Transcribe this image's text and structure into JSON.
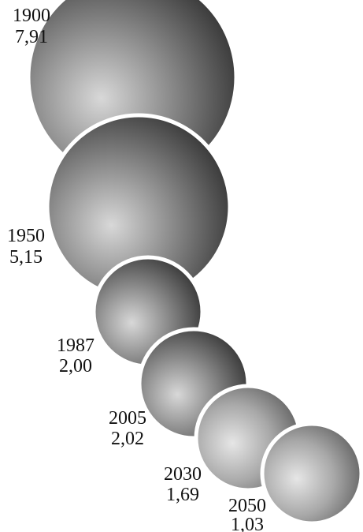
{
  "items": [
    {
      "year": "1900",
      "value": "7,91"
    },
    {
      "year": "1950",
      "value": "5,15"
    },
    {
      "year": "1987",
      "value": "2,00"
    },
    {
      "year": "2005",
      "value": "2,02"
    },
    {
      "year": "2030",
      "value": "1,69"
    },
    {
      "year": "2050",
      "value": "1,03"
    }
  ]
}
